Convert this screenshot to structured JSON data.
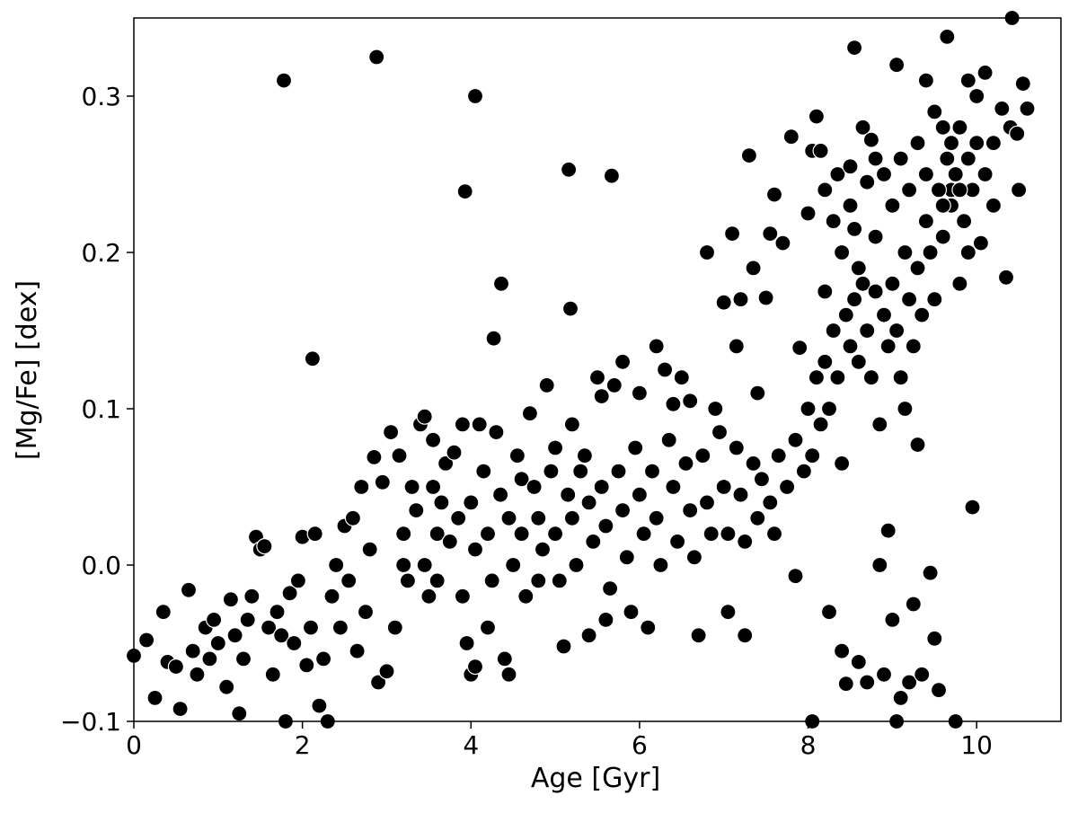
{
  "chart_data": {
    "type": "scatter",
    "title": "",
    "xlabel": "Age [Gyr]",
    "ylabel": "[Mg/Fe] [dex]",
    "xlim": [
      0,
      11
    ],
    "ylim": [
      -0.1,
      0.35
    ],
    "xticks": [
      0,
      2,
      4,
      6,
      8,
      10
    ],
    "xtick_labels": [
      "0",
      "2",
      "4",
      "6",
      "8",
      "10"
    ],
    "yticks": [
      -0.1,
      0.0,
      0.1,
      0.2,
      0.3
    ],
    "ytick_labels": [
      "−0.1",
      "0.0",
      "0.1",
      "0.2",
      "0.3"
    ],
    "grid": false,
    "legend": "none",
    "marker_color": "#000000",
    "marker_edge_color": "#ffffff",
    "series": [
      {
        "points": [
          [
            1.78,
            0.31
          ],
          [
            2.88,
            0.325
          ],
          [
            4.05,
            0.3
          ],
          [
            3.93,
            0.239
          ],
          [
            5.16,
            0.253
          ],
          [
            5.67,
            0.249
          ],
          [
            4.36,
            0.18
          ],
          [
            5.18,
            0.164
          ],
          [
            2.12,
            0.132
          ],
          [
            4.27,
            0.145
          ],
          [
            8.55,
            0.331
          ],
          [
            9.65,
            0.338
          ],
          [
            10.42,
            0.35
          ],
          [
            10.35,
            0.184
          ],
          [
            9.95,
            0.037
          ],
          [
            8.05,
            -0.1
          ],
          [
            9.05,
            -0.1
          ],
          [
            9.75,
            -0.1
          ],
          [
            0.0,
            -0.058
          ],
          [
            0.15,
            -0.048
          ],
          [
            0.25,
            -0.085
          ],
          [
            0.35,
            -0.03
          ],
          [
            0.4,
            -0.062
          ],
          [
            0.5,
            -0.065
          ],
          [
            0.55,
            -0.092
          ],
          [
            0.65,
            -0.016
          ],
          [
            0.7,
            -0.055
          ],
          [
            0.75,
            -0.07
          ],
          [
            0.85,
            -0.04
          ],
          [
            0.9,
            -0.06
          ],
          [
            0.95,
            -0.035
          ],
          [
            1.0,
            -0.05
          ],
          [
            1.1,
            -0.078
          ],
          [
            1.15,
            -0.022
          ],
          [
            1.2,
            -0.045
          ],
          [
            1.25,
            -0.095
          ],
          [
            1.3,
            -0.06
          ],
          [
            1.35,
            -0.035
          ],
          [
            1.4,
            -0.02
          ],
          [
            1.45,
            0.018
          ],
          [
            1.5,
            0.01
          ],
          [
            1.55,
            0.012
          ],
          [
            1.6,
            -0.04
          ],
          [
            1.65,
            -0.07
          ],
          [
            1.7,
            -0.03
          ],
          [
            1.75,
            -0.045
          ],
          [
            1.8,
            -0.1
          ],
          [
            1.85,
            -0.018
          ],
          [
            1.9,
            -0.05
          ],
          [
            1.95,
            -0.01
          ],
          [
            2.0,
            0.018
          ],
          [
            2.05,
            -0.064
          ],
          [
            2.1,
            -0.04
          ],
          [
            2.15,
            0.02
          ],
          [
            2.2,
            -0.09
          ],
          [
            2.25,
            -0.06
          ],
          [
            2.3,
            -0.1
          ],
          [
            2.35,
            -0.02
          ],
          [
            2.4,
            0.0
          ],
          [
            2.45,
            -0.04
          ],
          [
            2.5,
            0.025
          ],
          [
            2.55,
            -0.01
          ],
          [
            2.6,
            0.03
          ],
          [
            2.65,
            -0.055
          ],
          [
            2.7,
            0.05
          ],
          [
            2.75,
            -0.03
          ],
          [
            2.8,
            0.01
          ],
          [
            2.85,
            0.069
          ],
          [
            2.9,
            -0.075
          ],
          [
            2.95,
            0.053
          ],
          [
            3.0,
            -0.068
          ],
          [
            3.05,
            0.085
          ],
          [
            3.1,
            -0.04
          ],
          [
            3.15,
            0.07
          ],
          [
            3.2,
            0.0
          ],
          [
            3.3,
            0.05
          ],
          [
            3.4,
            0.09
          ],
          [
            3.45,
            0.095
          ],
          [
            3.5,
            -0.02
          ],
          [
            3.55,
            0.08
          ],
          [
            3.6,
            0.02
          ],
          [
            3.7,
            0.065
          ],
          [
            3.8,
            0.072
          ],
          [
            3.9,
            0.09
          ],
          [
            3.95,
            -0.05
          ],
          [
            4.0,
            -0.07
          ],
          [
            4.05,
            -0.065
          ],
          [
            4.1,
            0.09
          ],
          [
            4.2,
            -0.04
          ],
          [
            4.3,
            0.085
          ],
          [
            4.4,
            -0.06
          ],
          [
            4.45,
            -0.07
          ],
          [
            4.6,
            0.055
          ],
          [
            4.7,
            0.097
          ],
          [
            4.8,
            -0.01
          ],
          [
            4.9,
            0.115
          ],
          [
            5.0,
            0.075
          ],
          [
            5.1,
            -0.052
          ],
          [
            5.2,
            0.09
          ],
          [
            5.3,
            0.06
          ],
          [
            5.4,
            -0.045
          ],
          [
            5.5,
            0.12
          ],
          [
            5.55,
            0.108
          ],
          [
            5.6,
            -0.035
          ],
          [
            5.7,
            0.115
          ],
          [
            5.8,
            0.13
          ],
          [
            5.9,
            -0.03
          ],
          [
            6.0,
            0.11
          ],
          [
            6.1,
            -0.04
          ],
          [
            6.2,
            0.14
          ],
          [
            6.3,
            0.125
          ],
          [
            6.4,
            0.103
          ],
          [
            6.5,
            0.12
          ],
          [
            6.6,
            0.105
          ],
          [
            6.7,
            -0.045
          ],
          [
            6.8,
            0.2
          ],
          [
            6.9,
            0.1
          ],
          [
            7.0,
            0.168
          ],
          [
            7.05,
            -0.03
          ],
          [
            7.1,
            0.212
          ],
          [
            7.15,
            0.14
          ],
          [
            7.2,
            0.17
          ],
          [
            7.25,
            -0.045
          ],
          [
            7.3,
            0.262
          ],
          [
            7.35,
            0.19
          ],
          [
            7.4,
            0.11
          ],
          [
            7.5,
            0.171
          ],
          [
            7.55,
            0.212
          ],
          [
            7.6,
            0.237
          ],
          [
            7.7,
            0.206
          ],
          [
            7.8,
            0.274
          ],
          [
            7.85,
            -0.007
          ],
          [
            7.9,
            0.139
          ],
          [
            8.0,
            0.225
          ],
          [
            8.05,
            0.265
          ],
          [
            8.1,
            0.287
          ],
          [
            8.15,
            0.265
          ],
          [
            8.2,
            0.175
          ],
          [
            8.25,
            -0.03
          ],
          [
            8.35,
            0.25
          ],
          [
            8.4,
            -0.055
          ],
          [
            8.45,
            -0.076
          ],
          [
            8.5,
            0.255
          ],
          [
            8.55,
            0.215
          ],
          [
            8.6,
            -0.062
          ],
          [
            8.65,
            0.28
          ],
          [
            8.7,
            -0.075
          ],
          [
            8.75,
            0.272
          ],
          [
            8.8,
            0.26
          ],
          [
            8.85,
            0.0
          ],
          [
            8.9,
            -0.07
          ],
          [
            8.95,
            0.022
          ],
          [
            9.0,
            -0.035
          ],
          [
            9.05,
            0.32
          ],
          [
            9.1,
            -0.085
          ],
          [
            9.15,
            0.1
          ],
          [
            9.2,
            -0.075
          ],
          [
            9.25,
            -0.025
          ],
          [
            9.3,
            0.077
          ],
          [
            9.35,
            -0.07
          ],
          [
            9.4,
            0.31
          ],
          [
            9.45,
            -0.005
          ],
          [
            9.5,
            -0.047
          ],
          [
            9.55,
            -0.08
          ],
          [
            9.6,
            0.28
          ],
          [
            9.7,
            0.24
          ],
          [
            9.8,
            0.18
          ],
          [
            9.9,
            0.31
          ],
          [
            10.0,
            0.3
          ],
          [
            10.05,
            0.206
          ],
          [
            10.1,
            0.315
          ],
          [
            10.2,
            0.23
          ],
          [
            10.3,
            0.292
          ],
          [
            10.4,
            0.28
          ],
          [
            10.5,
            0.24
          ],
          [
            10.55,
            0.308
          ],
          [
            10.6,
            0.292
          ],
          [
            10.48,
            0.276
          ],
          [
            3.2,
            0.02
          ],
          [
            3.25,
            -0.01
          ],
          [
            3.35,
            0.035
          ],
          [
            3.45,
            0.0
          ],
          [
            3.55,
            0.05
          ],
          [
            3.6,
            -0.01
          ],
          [
            3.65,
            0.04
          ],
          [
            3.75,
            0.015
          ],
          [
            3.85,
            0.03
          ],
          [
            3.9,
            -0.02
          ],
          [
            4.0,
            0.04
          ],
          [
            4.05,
            0.01
          ],
          [
            4.15,
            0.06
          ],
          [
            4.2,
            0.02
          ],
          [
            4.25,
            -0.01
          ],
          [
            4.35,
            0.045
          ],
          [
            4.45,
            0.03
          ],
          [
            4.5,
            0.0
          ],
          [
            4.55,
            0.07
          ],
          [
            4.6,
            0.02
          ],
          [
            4.65,
            -0.02
          ],
          [
            4.75,
            0.05
          ],
          [
            4.8,
            0.03
          ],
          [
            4.85,
            0.01
          ],
          [
            4.95,
            0.06
          ],
          [
            5.0,
            0.02
          ],
          [
            5.05,
            -0.01
          ],
          [
            5.15,
            0.045
          ],
          [
            5.2,
            0.03
          ],
          [
            5.25,
            0.0
          ],
          [
            5.35,
            0.07
          ],
          [
            5.4,
            0.04
          ],
          [
            5.45,
            0.015
          ],
          [
            5.55,
            0.05
          ],
          [
            5.6,
            0.025
          ],
          [
            5.65,
            -0.015
          ],
          [
            5.75,
            0.06
          ],
          [
            5.8,
            0.035
          ],
          [
            5.85,
            0.005
          ],
          [
            5.95,
            0.075
          ],
          [
            6.0,
            0.045
          ],
          [
            6.05,
            0.02
          ],
          [
            6.15,
            0.06
          ],
          [
            6.2,
            0.03
          ],
          [
            6.25,
            0.0
          ],
          [
            6.35,
            0.08
          ],
          [
            6.4,
            0.05
          ],
          [
            6.45,
            0.015
          ],
          [
            6.55,
            0.065
          ],
          [
            6.6,
            0.035
          ],
          [
            6.65,
            0.005
          ],
          [
            6.75,
            0.07
          ],
          [
            6.8,
            0.04
          ],
          [
            6.85,
            0.02
          ],
          [
            6.95,
            0.085
          ],
          [
            7.0,
            0.05
          ],
          [
            7.05,
            0.02
          ],
          [
            7.15,
            0.075
          ],
          [
            7.2,
            0.045
          ],
          [
            7.25,
            0.015
          ],
          [
            7.35,
            0.065
          ],
          [
            7.4,
            0.03
          ],
          [
            7.45,
            0.055
          ],
          [
            7.55,
            0.04
          ],
          [
            7.6,
            0.02
          ],
          [
            7.65,
            0.07
          ],
          [
            7.75,
            0.05
          ],
          [
            7.85,
            0.08
          ],
          [
            7.95,
            0.06
          ],
          [
            8.0,
            0.1
          ],
          [
            8.05,
            0.07
          ],
          [
            8.1,
            0.12
          ],
          [
            8.15,
            0.09
          ],
          [
            8.2,
            0.13
          ],
          [
            8.25,
            0.1
          ],
          [
            8.3,
            0.15
          ],
          [
            8.35,
            0.12
          ],
          [
            8.4,
            0.065
          ],
          [
            8.45,
            0.16
          ],
          [
            8.5,
            0.14
          ],
          [
            8.55,
            0.17
          ],
          [
            8.6,
            0.13
          ],
          [
            8.65,
            0.18
          ],
          [
            8.7,
            0.15
          ],
          [
            8.75,
            0.12
          ],
          [
            8.8,
            0.175
          ],
          [
            8.85,
            0.09
          ],
          [
            8.9,
            0.16
          ],
          [
            8.95,
            0.14
          ],
          [
            9.0,
            0.18
          ],
          [
            9.05,
            0.15
          ],
          [
            9.1,
            0.12
          ],
          [
            9.15,
            0.2
          ],
          [
            9.2,
            0.17
          ],
          [
            9.25,
            0.14
          ],
          [
            9.3,
            0.19
          ],
          [
            9.35,
            0.16
          ],
          [
            9.4,
            0.22
          ],
          [
            9.45,
            0.2
          ],
          [
            9.5,
            0.17
          ],
          [
            9.55,
            0.24
          ],
          [
            9.6,
            0.21
          ],
          [
            9.65,
            0.26
          ],
          [
            9.7,
            0.23
          ],
          [
            9.75,
            0.25
          ],
          [
            9.8,
            0.28
          ],
          [
            9.85,
            0.22
          ],
          [
            9.9,
            0.26
          ],
          [
            9.95,
            0.24
          ],
          [
            10.0,
            0.27
          ],
          [
            8.2,
            0.24
          ],
          [
            8.3,
            0.22
          ],
          [
            8.4,
            0.2
          ],
          [
            8.5,
            0.23
          ],
          [
            8.6,
            0.19
          ],
          [
            8.7,
            0.245
          ],
          [
            8.8,
            0.21
          ],
          [
            8.9,
            0.25
          ],
          [
            9.0,
            0.23
          ],
          [
            9.1,
            0.26
          ],
          [
            9.2,
            0.24
          ],
          [
            9.3,
            0.27
          ],
          [
            9.4,
            0.25
          ],
          [
            9.5,
            0.29
          ],
          [
            9.6,
            0.23
          ],
          [
            9.7,
            0.27
          ],
          [
            9.8,
            0.24
          ],
          [
            9.9,
            0.2
          ],
          [
            10.1,
            0.25
          ],
          [
            10.2,
            0.27
          ]
        ]
      }
    ]
  }
}
